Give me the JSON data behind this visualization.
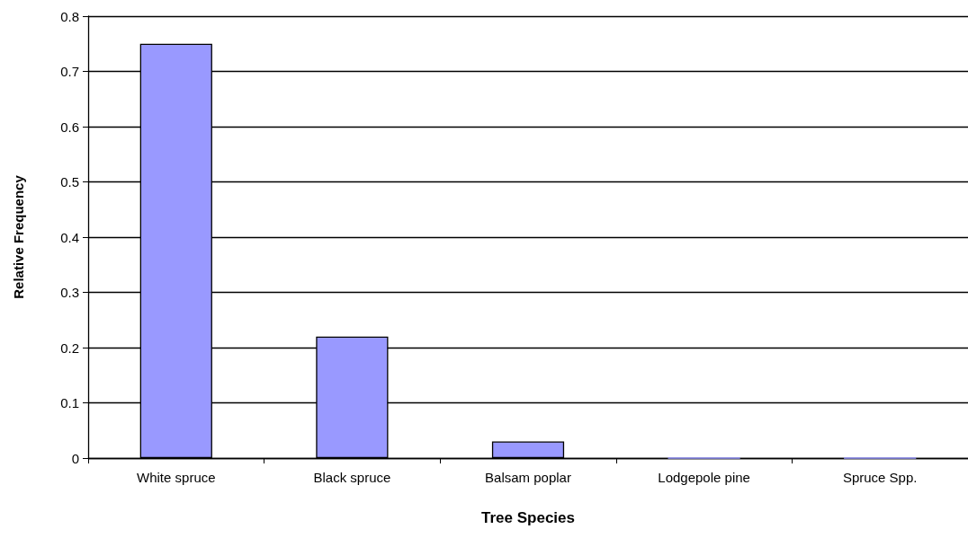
{
  "chart_data": {
    "type": "bar",
    "xlabel": "Tree Species",
    "ylabel": "Relative Frequency",
    "categories": [
      "White spruce",
      "Black spruce",
      "Balsam poplar",
      "Lodgepole pine",
      "Spruce Spp."
    ],
    "values": [
      0.75,
      0.22,
      0.03,
      0,
      0
    ],
    "color": "#9999ff",
    "ylim": [
      0,
      0.8
    ],
    "yticks": [
      0,
      0.1,
      0.2,
      0.3,
      0.4,
      0.5,
      0.6,
      0.7,
      0.8
    ],
    "grid": "y"
  }
}
